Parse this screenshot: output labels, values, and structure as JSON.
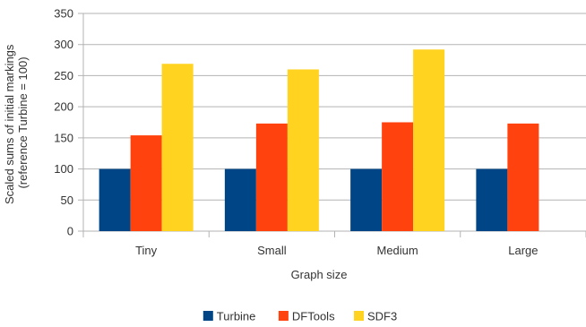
{
  "chart_data": {
    "type": "bar",
    "categories": [
      "Tiny",
      "Small",
      "Medium",
      "Large"
    ],
    "series": [
      {
        "name": "Turbine",
        "values": [
          100,
          100,
          100,
          100
        ],
        "color": "#004586"
      },
      {
        "name": "DFTools",
        "values": [
          154,
          173,
          175,
          173
        ],
        "color": "#ff420e"
      },
      {
        "name": "SDF3",
        "values": [
          269,
          260,
          292,
          null
        ],
        "color": "#ffd320"
      }
    ],
    "xlabel": "Graph size",
    "ylabel_lines": [
      "Scaled sums of initial markings",
      "(reference Turbine = 100)"
    ],
    "ylim": [
      0,
      350
    ],
    "yticks": [
      0,
      50,
      100,
      150,
      200,
      250,
      300,
      350
    ],
    "grid": true,
    "legend_position": "bottom"
  }
}
